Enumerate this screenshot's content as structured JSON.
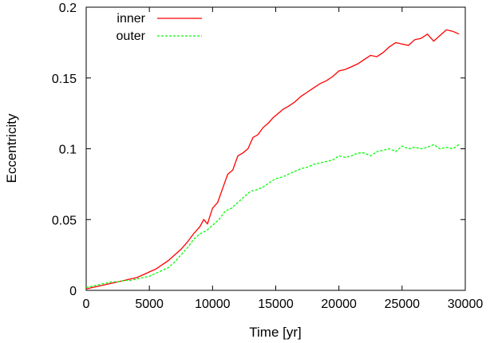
{
  "chart_data": {
    "type": "line",
    "xlabel": "Time [yr]",
    "ylabel": "Eccentricity",
    "xlim": [
      0,
      30000
    ],
    "ylim": [
      0,
      0.2
    ],
    "xticks": [
      0,
      5000,
      10000,
      15000,
      20000,
      25000,
      30000
    ],
    "yticks": [
      0,
      0.05,
      0.1,
      0.15,
      0.2
    ],
    "xtick_labels": [
      "0",
      "5000",
      "10000",
      "15000",
      "20000",
      "25000",
      "30000"
    ],
    "ytick_labels": [
      "0",
      "0.05",
      "0.1",
      "0.15",
      "0.2"
    ],
    "grid": false,
    "legend_position": "top-left",
    "series": [
      {
        "name": "inner",
        "color": "#ff0000",
        "dash": "solid",
        "x": [
          0,
          500,
          1000,
          1500,
          2000,
          2500,
          3000,
          3500,
          4000,
          4500,
          5000,
          5500,
          6000,
          6500,
          7000,
          7500,
          8000,
          8500,
          9000,
          9300,
          9600,
          10000,
          10400,
          10800,
          11200,
          11600,
          12000,
          12400,
          12800,
          13200,
          13600,
          14000,
          14400,
          14800,
          15200,
          15600,
          16000,
          16500,
          17000,
          17500,
          18000,
          18500,
          19000,
          19500,
          20000,
          20500,
          21000,
          21500,
          22000,
          22500,
          23000,
          23500,
          24000,
          24500,
          25000,
          25500,
          26000,
          26500,
          27000,
          27500,
          28000,
          28500,
          29000,
          29500
        ],
        "y": [
          0.001,
          0.002,
          0.003,
          0.004,
          0.005,
          0.006,
          0.007,
          0.008,
          0.009,
          0.011,
          0.013,
          0.015,
          0.018,
          0.021,
          0.025,
          0.029,
          0.034,
          0.04,
          0.045,
          0.05,
          0.047,
          0.058,
          0.062,
          0.072,
          0.082,
          0.085,
          0.095,
          0.097,
          0.1,
          0.108,
          0.11,
          0.115,
          0.118,
          0.122,
          0.125,
          0.128,
          0.13,
          0.133,
          0.137,
          0.14,
          0.143,
          0.146,
          0.148,
          0.151,
          0.155,
          0.156,
          0.158,
          0.16,
          0.163,
          0.166,
          0.165,
          0.168,
          0.172,
          0.175,
          0.174,
          0.173,
          0.177,
          0.178,
          0.181,
          0.176,
          0.18,
          0.184,
          0.183,
          0.181
        ]
      },
      {
        "name": "outer",
        "color": "#00ff00",
        "dash": "dashed",
        "x": [
          0,
          500,
          1000,
          1500,
          2000,
          2500,
          3000,
          3500,
          4000,
          4500,
          5000,
          5500,
          6000,
          6500,
          7000,
          7500,
          8000,
          8500,
          9000,
          9500,
          10000,
          10500,
          11000,
          11500,
          12000,
          12500,
          13000,
          13500,
          14000,
          14500,
          15000,
          15500,
          16000,
          16500,
          17000,
          17500,
          18000,
          18500,
          19000,
          19500,
          20000,
          20500,
          21000,
          21500,
          22000,
          22500,
          23000,
          23500,
          24000,
          24500,
          25000,
          25500,
          26000,
          26500,
          27000,
          27500,
          28000,
          28500,
          29000,
          29500
        ],
        "y": [
          0.002,
          0.003,
          0.004,
          0.005,
          0.006,
          0.006,
          0.007,
          0.007,
          0.008,
          0.009,
          0.01,
          0.012,
          0.014,
          0.016,
          0.02,
          0.025,
          0.03,
          0.036,
          0.04,
          0.042,
          0.046,
          0.05,
          0.056,
          0.058,
          0.062,
          0.066,
          0.07,
          0.071,
          0.073,
          0.076,
          0.079,
          0.08,
          0.082,
          0.084,
          0.086,
          0.087,
          0.089,
          0.09,
          0.091,
          0.092,
          0.095,
          0.094,
          0.095,
          0.097,
          0.097,
          0.095,
          0.098,
          0.099,
          0.1,
          0.098,
          0.102,
          0.1,
          0.101,
          0.1,
          0.101,
          0.103,
          0.1,
          0.101,
          0.1,
          0.103
        ]
      }
    ]
  }
}
